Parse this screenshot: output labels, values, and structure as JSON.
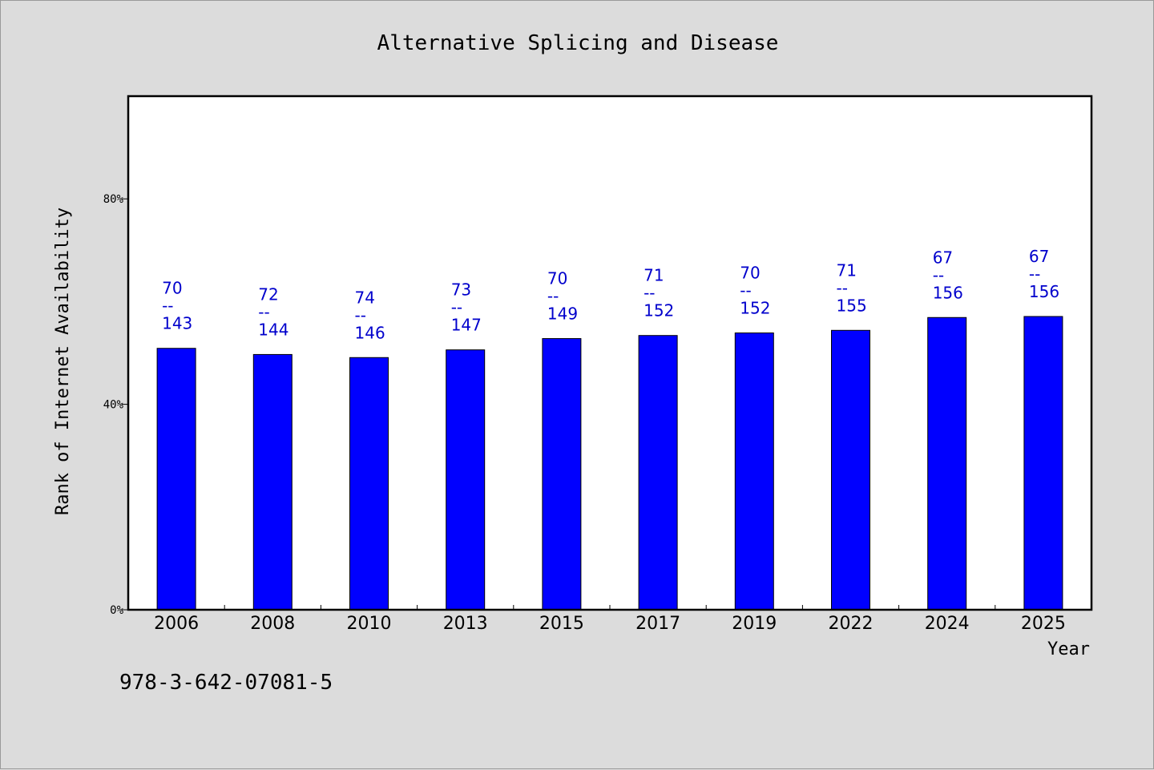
{
  "chart_data": {
    "type": "bar",
    "title": "Alternative Splicing and Disease",
    "xlabel": "Year",
    "ylabel": "Rank of Internet Availability",
    "ylim": [
      0,
      100
    ],
    "yticks": [
      0,
      40,
      80
    ],
    "ytick_labels": [
      "0%",
      "40%",
      "80%"
    ],
    "categories": [
      "2006",
      "2008",
      "2010",
      "2013",
      "2015",
      "2017",
      "2019",
      "2022",
      "2024",
      "2025"
    ],
    "values": [
      50.9,
      49.7,
      49.1,
      50.6,
      52.8,
      53.4,
      53.9,
      54.4,
      56.9,
      57.1
    ],
    "labels_top": [
      "70",
      "72",
      "74",
      "73",
      "70",
      "71",
      "70",
      "71",
      "67",
      "67"
    ],
    "labels_mid": [
      "--",
      "--",
      "--",
      "--",
      "--",
      "--",
      "--",
      "--",
      "--",
      "--"
    ],
    "labels_bottom": [
      "143",
      "144",
      "146",
      "147",
      "149",
      "152",
      "152",
      "155",
      "156",
      "156"
    ],
    "grid": false,
    "bar_color": "#0000ff",
    "label_color": "#0000cc"
  },
  "footer": {
    "isbn": "978-3-642-07081-5"
  }
}
